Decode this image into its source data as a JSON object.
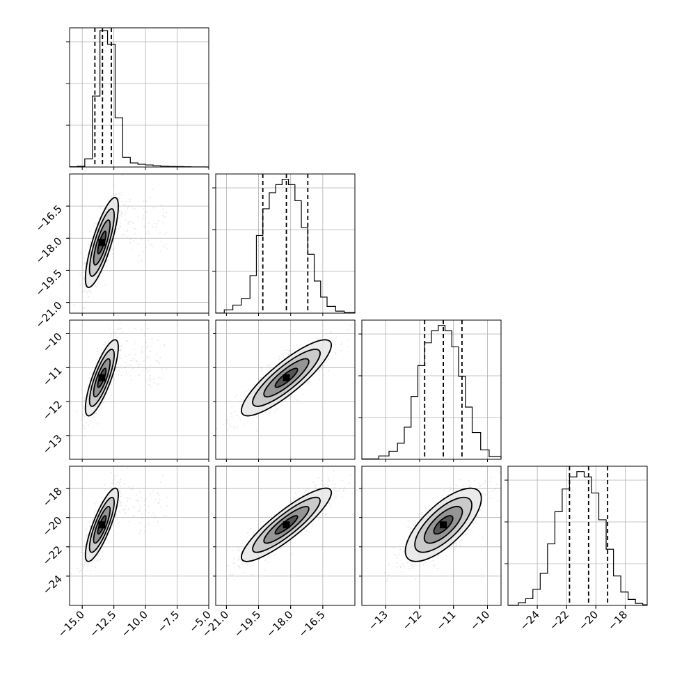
{
  "chart_data": {
    "type": "corner",
    "grid": true,
    "histogram_style": "step, unfilled",
    "quantile_lines": "dashed",
    "point_color": "#999999",
    "line_color": "#000000",
    "parameters": [
      {
        "name": "",
        "range": [
          -16.0,
          -5.0
        ],
        "ticks": [
          -15.0,
          -12.5,
          -10.0,
          -7.5,
          -5.0
        ],
        "tick_labels": [
          "−15.0",
          "−12.5",
          "−10.0",
          "−7.5",
          "−5.0"
        ],
        "quantiles": [
          -14.0,
          -13.4,
          -12.7
        ],
        "hist_bins": [
          -16.0,
          -15.4,
          -14.8,
          -14.2,
          -13.6,
          -13.0,
          -12.4,
          -11.8,
          -11.2,
          -10.6,
          -10.0,
          -9.4,
          -8.8,
          -8.2,
          -7.6,
          -7.0,
          -6.4,
          -5.8,
          -5.2,
          -5.0
        ],
        "hist_counts": [
          2,
          5,
          60,
          520,
          1000,
          900,
          360,
          70,
          30,
          20,
          15,
          10,
          6,
          4,
          3,
          2,
          1,
          1,
          0
        ],
        "hist_ymax": 1020,
        "center": -13.45,
        "spread": 0.65
      },
      {
        "name": "",
        "range": [
          -21.5,
          -15.0
        ],
        "ticks": [
          -21.0,
          -19.5,
          -18.0,
          -16.5
        ],
        "tick_labels": [
          "−21.0",
          "−19.5",
          "−18.0",
          "−16.5"
        ],
        "quantiles": [
          -19.3,
          -18.2,
          -17.2
        ],
        "hist_bins": [
          -21.5,
          -21.1,
          -20.7,
          -20.3,
          -19.9,
          -19.6,
          -19.3,
          -19.0,
          -18.7,
          -18.4,
          -18.1,
          -17.8,
          -17.5,
          -17.2,
          -16.9,
          -16.6,
          -16.3,
          -15.9,
          -15.5,
          -15.0
        ],
        "hist_counts": [
          1,
          25,
          60,
          110,
          280,
          580,
          780,
          900,
          960,
          1000,
          960,
          840,
          640,
          440,
          240,
          120,
          50,
          15,
          5
        ],
        "hist_ymax": 1040,
        "center": -18.2,
        "spread": 1.05
      },
      {
        "name": "",
        "range": [
          -13.7,
          -9.6
        ],
        "ticks": [
          -13.0,
          -12.0,
          -11.0,
          -10.0
        ],
        "tick_labels": [
          "−13",
          "−12",
          "−11",
          "−10"
        ],
        "quantiles": [
          -11.85,
          -11.3,
          -10.75
        ],
        "hist_bins": [
          -13.7,
          -13.2,
          -12.9,
          -12.65,
          -12.45,
          -12.25,
          -12.05,
          -11.85,
          -11.65,
          -11.45,
          -11.25,
          -11.05,
          -10.85,
          -10.65,
          -10.45,
          -10.2,
          -9.95,
          -9.6
        ],
        "hist_counts": [
          3,
          25,
          60,
          120,
          240,
          470,
          700,
          870,
          960,
          1000,
          960,
          840,
          620,
          390,
          200,
          70,
          20
        ],
        "hist_ymax": 1040,
        "center": -11.3,
        "spread": 0.56
      },
      {
        "name": "",
        "range": [
          -26.0,
          -16.5
        ],
        "ticks": [
          -24.0,
          -22.0,
          -20.0,
          -18.0
        ],
        "tick_labels": [
          "−24",
          "−22",
          "−20",
          "−18"
        ],
        "quantiles": [
          -21.8,
          -20.5,
          -19.2
        ],
        "hist_bins": [
          -26.0,
          -25.3,
          -24.8,
          -24.3,
          -23.8,
          -23.3,
          -22.8,
          -22.3,
          -21.8,
          -21.3,
          -20.8,
          -20.3,
          -19.8,
          -19.3,
          -18.8,
          -18.3,
          -17.8,
          -17.3,
          -16.8,
          -16.5
        ],
        "hist_counts": [
          2,
          20,
          50,
          120,
          240,
          460,
          700,
          870,
          960,
          1000,
          960,
          840,
          640,
          420,
          220,
          100,
          45,
          15,
          5
        ],
        "hist_ymax": 1040,
        "center": -20.5,
        "spread": 1.25
      }
    ],
    "correlations": [
      [
        1.0,
        0.8,
        0.8,
        0.82
      ],
      [
        0.8,
        1.0,
        0.86,
        0.88
      ],
      [
        0.8,
        0.86,
        1.0,
        0.72
      ],
      [
        0.82,
        0.88,
        0.72,
        1.0
      ]
    ],
    "contour_levels_sigma": [
      0.5,
      1.0,
      1.5,
      2.0
    ]
  }
}
